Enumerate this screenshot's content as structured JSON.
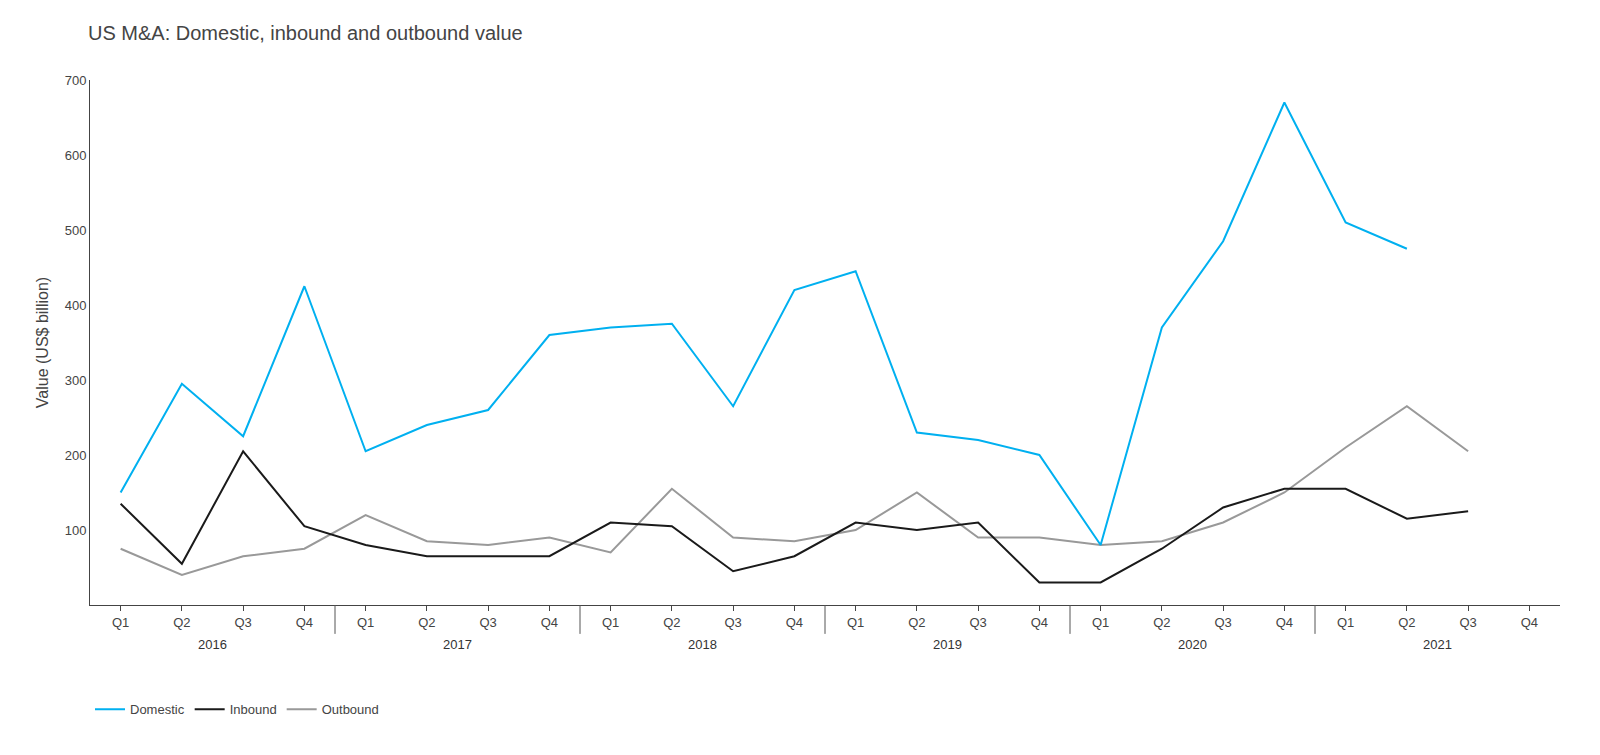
{
  "chart_data": {
    "type": "line",
    "title": "US M&A: Domestic, inbound and outbound value",
    "ylabel": "Value (US$ billion)",
    "categories": [
      "Q1",
      "Q2",
      "Q3",
      "Q4",
      "Q1",
      "Q2",
      "Q3",
      "Q4",
      "Q1",
      "Q2",
      "Q3",
      "Q4",
      "Q1",
      "Q2",
      "Q3",
      "Q4",
      "Q1",
      "Q2",
      "Q3",
      "Q4",
      "Q1",
      "Q2",
      "Q3",
      "Q4"
    ],
    "annotations": [
      "2016",
      "2017",
      "2018",
      "2019",
      "2020",
      "2021"
    ],
    "series": [
      {
        "name": "Outbound",
        "color": "#999999",
        "values": [
          75,
          40,
          65,
          75,
          120,
          85,
          80,
          90,
          70,
          155,
          90,
          85,
          100,
          150,
          90,
          90,
          80,
          85,
          110,
          150,
          210,
          265,
          205,
          null
        ]
      },
      {
        "name": "Inbound",
        "color": "#1a1a1a",
        "values": [
          135,
          55,
          205,
          105,
          80,
          65,
          65,
          65,
          110,
          105,
          45,
          65,
          110,
          100,
          110,
          30,
          30,
          75,
          130,
          155,
          155,
          115,
          125,
          null
        ]
      },
      {
        "name": "Domestic",
        "color": "#00b0f0",
        "values": [
          150,
          295,
          225,
          425,
          205,
          240,
          260,
          360,
          370,
          375,
          265,
          420,
          445,
          230,
          220,
          200,
          80,
          370,
          485,
          670,
          510,
          475,
          null,
          null
        ]
      }
    ],
    "ylim": [
      0,
      700
    ],
    "yticks": [
      100,
      200,
      300,
      400,
      500,
      600,
      700
    ],
    "grid": false,
    "legend": "lower left"
  }
}
